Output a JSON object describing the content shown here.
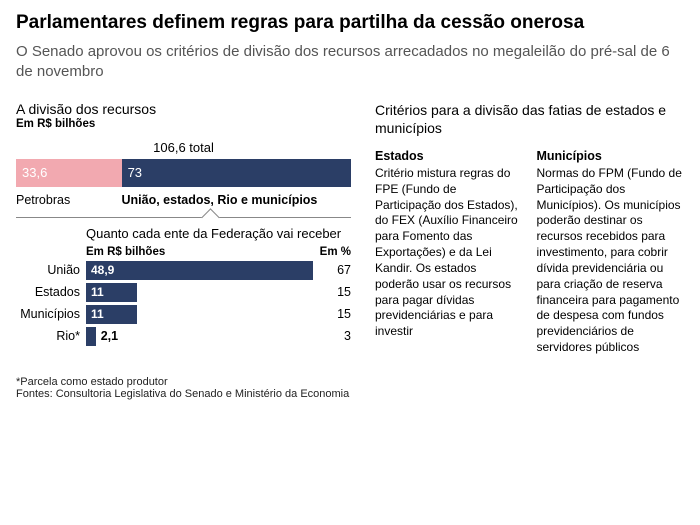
{
  "headline": "Parlamentares definem regras para partilha da cessão onerosa",
  "subhead": "O Senado aprovou os critérios de divisão dos recursos arrecadados no megaleilão do pré-sal de 6 de novembro",
  "left": {
    "title": "A divisão dos recursos",
    "unit": "Em R$ bilhões",
    "total_label": "106,6 total",
    "stacked": {
      "segments": [
        {
          "label": "33,6",
          "value": 33.6,
          "color": "#f2a9b0",
          "text_color": "#ffffff",
          "caption": "Petrobras",
          "caption_bold": false
        },
        {
          "label": "73",
          "value": 73.0,
          "color": "#2b3e66",
          "text_color": "#ffffff",
          "caption": "União, estados, Rio e municípios",
          "caption_bold": true
        }
      ],
      "total": 106.6
    },
    "sub_title": "Quanto cada ente da Federação vai receber",
    "col1": "Em R$ bilhões",
    "col2": "Em %",
    "rows": [
      {
        "name": "União",
        "value": 48.9,
        "value_label": "48,9",
        "pct": 67,
        "label_inside": true
      },
      {
        "name": "Estados",
        "value": 11.0,
        "value_label": "11",
        "pct": 15,
        "label_inside": true
      },
      {
        "name": "Municípios",
        "value": 11.0,
        "value_label": "11",
        "pct": 15,
        "label_inside": true
      },
      {
        "name": "Rio*",
        "value": 2.1,
        "value_label": "2,1",
        "pct": 3,
        "label_inside": false
      }
    ],
    "row_max": 48.9,
    "bar_color": "#2b3e66",
    "footnote": "*Parcela como estado produtor",
    "source": "Fontes: Consultoria Legislativa do Senado e Ministério da Economia"
  },
  "right": {
    "title": "Critérios para a divisão das fatias de estados e municípios",
    "cols": [
      {
        "head": "Estados",
        "body": "Critério mistura regras do FPE (Fundo de Participação dos Estados), do FEX (Auxílio Financeiro para Fomento das Exportações) e da Lei Kandir. Os estados poderão usar os recursos para pagar dívidas previdenciárias e para investir"
      },
      {
        "head": "Municípios",
        "body": "Normas do FPM (Fundo de Participação dos Municípios). Os municípios poderão destinar os recursos recebidos para investimento, para cobrir dívida previdenciária ou para criação de reserva financeira para pagamento de despesa com fundos previdenciários de servidores públicos"
      }
    ]
  },
  "style": {
    "background": "#ffffff",
    "text_color": "#000000",
    "muted_color": "#555555"
  }
}
